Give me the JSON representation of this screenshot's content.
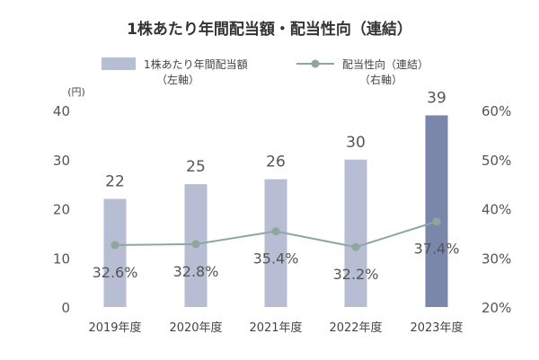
{
  "chart_data": {
    "type": "bar",
    "title": "1株あたり年間配当額・配当性向（連結）",
    "unit_left": "(円)",
    "categories": [
      "2019年度",
      "2020年度",
      "2021年度",
      "2022年度",
      "2023年度"
    ],
    "series": [
      {
        "name": "1株あたり年間配当額",
        "name_sub": "（左軸）",
        "type": "bar",
        "axis": "left",
        "values": [
          22,
          25,
          26,
          30,
          39
        ],
        "labels": [
          "22",
          "25",
          "26",
          "30",
          "39"
        ],
        "color": "#b7bdd3",
        "highlight_color": "#7b86ab"
      },
      {
        "name": "配当性向（連結）",
        "name_sub": "（右軸）",
        "type": "line",
        "axis": "right",
        "values": [
          32.6,
          32.8,
          35.4,
          32.2,
          37.4
        ],
        "labels": [
          "32.6%",
          "32.8%",
          "35.4%",
          "32.2%",
          "37.4%"
        ],
        "color": "#8ea79d"
      }
    ],
    "y_left": {
      "min": 0,
      "max": 40,
      "ticks": [
        "0",
        "10",
        "20",
        "30",
        "40"
      ]
    },
    "y_right": {
      "min": 20,
      "max": 60,
      "ticks": [
        "20%",
        "30%",
        "40%",
        "50%",
        "60%"
      ]
    },
    "legend_position": "top",
    "grid": false
  }
}
